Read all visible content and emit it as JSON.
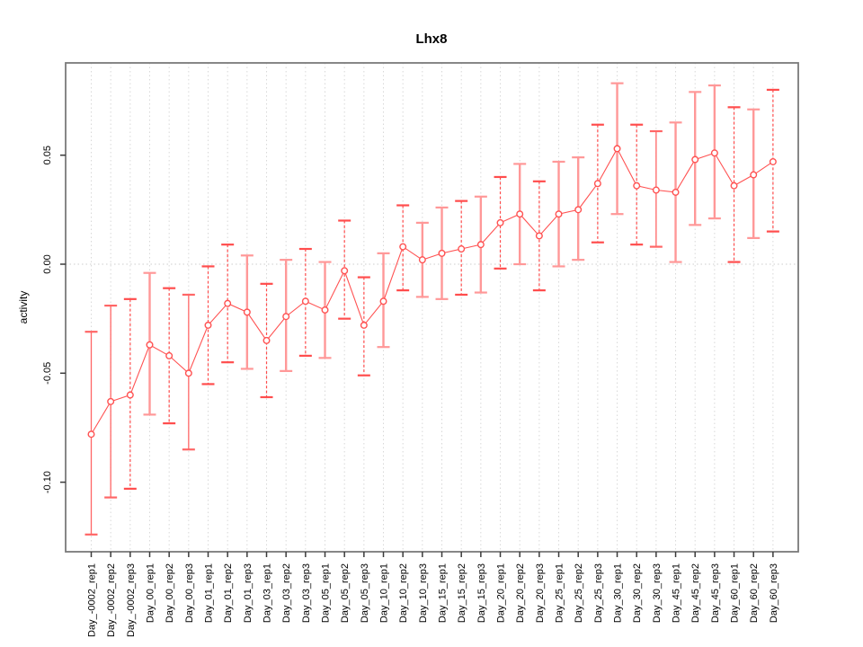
{
  "chart_data": {
    "type": "line",
    "subtype": "points-with-error-bars",
    "title": "Lhx8",
    "xlabel": "",
    "ylabel": "activity",
    "ylim": [
      -0.132,
      0.092
    ],
    "grid": "vertical dotted gridline at every x position; horizontal dotted line at y=0",
    "legend_position": "none",
    "colors": {
      "point": "#ff5252",
      "line": "#ff5252",
      "bar_solid": "#ff9898",
      "bar_solid_thin": "#ff6666",
      "bar_dashed": "#ff4d4d",
      "gridline": "#d8d8d8",
      "zero_line": "#cccccc",
      "box": "#7a7a7a",
      "tick": "#3a3a3a"
    },
    "y_ticks": [
      {
        "value": 0.05,
        "label": "0.05"
      },
      {
        "value": 0.0,
        "label": "0.00"
      },
      {
        "value": -0.05,
        "label": "-0.05"
      },
      {
        "value": -0.1,
        "label": "-0.10"
      }
    ],
    "categories": [
      "Day_-0002_rep1",
      "Day_-0002_rep2",
      "Day_-0002_rep3",
      "Day_00_rep1",
      "Day_00_rep2",
      "Day_00_rep3",
      "Day_01_rep1",
      "Day_01_rep2",
      "Day_01_rep3",
      "Day_03_rep1",
      "Day_03_rep2",
      "Day_03_rep3",
      "Day_05_rep1",
      "Day_05_rep2",
      "Day_05_rep3",
      "Day_10_rep1",
      "Day_10_rep2",
      "Day_10_rep3",
      "Day_15_rep1",
      "Day_15_rep2",
      "Day_15_rep3",
      "Day_20_rep1",
      "Day_20_rep2",
      "Day_20_rep3",
      "Day_25_rep1",
      "Day_25_rep2",
      "Day_25_rep3",
      "Day_30_rep1",
      "Day_30_rep2",
      "Day_30_rep3",
      "Day_45_rep1",
      "Day_45_rep2",
      "Day_45_rep3",
      "Day_60_rep1",
      "Day_60_rep2",
      "Day_60_rep3"
    ],
    "points": [
      {
        "label": "Day_-0002_rep1",
        "value": -0.078,
        "lower": -0.124,
        "upper": -0.031,
        "style": "solid-thin"
      },
      {
        "label": "Day_-0002_rep2",
        "value": -0.063,
        "lower": -0.107,
        "upper": -0.019,
        "style": "solid-thin"
      },
      {
        "label": "Day_-0002_rep3",
        "value": -0.06,
        "lower": -0.103,
        "upper": -0.016,
        "style": "dashed"
      },
      {
        "label": "Day_00_rep1",
        "value": -0.037,
        "lower": -0.069,
        "upper": -0.004,
        "style": "solid"
      },
      {
        "label": "Day_00_rep2",
        "value": -0.042,
        "lower": -0.073,
        "upper": -0.011,
        "style": "dashed"
      },
      {
        "label": "Day_00_rep3",
        "value": -0.05,
        "lower": -0.085,
        "upper": -0.014,
        "style": "solid-thin"
      },
      {
        "label": "Day_01_rep1",
        "value": -0.028,
        "lower": -0.055,
        "upper": -0.001,
        "style": "dashed"
      },
      {
        "label": "Day_01_rep2",
        "value": -0.018,
        "lower": -0.045,
        "upper": 0.009,
        "style": "dashed"
      },
      {
        "label": "Day_01_rep3",
        "value": -0.022,
        "lower": -0.048,
        "upper": 0.004,
        "style": "solid"
      },
      {
        "label": "Day_03_rep1",
        "value": -0.035,
        "lower": -0.061,
        "upper": -0.009,
        "style": "dashed"
      },
      {
        "label": "Day_03_rep2",
        "value": -0.024,
        "lower": -0.049,
        "upper": 0.002,
        "style": "solid"
      },
      {
        "label": "Day_03_rep3",
        "value": -0.017,
        "lower": -0.042,
        "upper": 0.007,
        "style": "dashed"
      },
      {
        "label": "Day_05_rep1",
        "value": -0.021,
        "lower": -0.043,
        "upper": 0.001,
        "style": "solid"
      },
      {
        "label": "Day_05_rep2",
        "value": -0.003,
        "lower": -0.025,
        "upper": 0.02,
        "style": "dashed"
      },
      {
        "label": "Day_05_rep3",
        "value": -0.028,
        "lower": -0.051,
        "upper": -0.006,
        "style": "dashed"
      },
      {
        "label": "Day_10_rep1",
        "value": -0.017,
        "lower": -0.038,
        "upper": 0.005,
        "style": "solid"
      },
      {
        "label": "Day_10_rep2",
        "value": 0.008,
        "lower": -0.012,
        "upper": 0.027,
        "style": "dashed"
      },
      {
        "label": "Day_10_rep3",
        "value": 0.002,
        "lower": -0.015,
        "upper": 0.019,
        "style": "solid"
      },
      {
        "label": "Day_15_rep1",
        "value": 0.005,
        "lower": -0.016,
        "upper": 0.026,
        "style": "solid"
      },
      {
        "label": "Day_15_rep2",
        "value": 0.007,
        "lower": -0.014,
        "upper": 0.029,
        "style": "dashed"
      },
      {
        "label": "Day_15_rep3",
        "value": 0.009,
        "lower": -0.013,
        "upper": 0.031,
        "style": "solid"
      },
      {
        "label": "Day_20_rep1",
        "value": 0.019,
        "lower": -0.002,
        "upper": 0.04,
        "style": "dashed"
      },
      {
        "label": "Day_20_rep2",
        "value": 0.023,
        "lower": 0.0,
        "upper": 0.046,
        "style": "solid"
      },
      {
        "label": "Day_20_rep3",
        "value": 0.013,
        "lower": -0.012,
        "upper": 0.038,
        "style": "dashed"
      },
      {
        "label": "Day_25_rep1",
        "value": 0.023,
        "lower": -0.001,
        "upper": 0.047,
        "style": "solid"
      },
      {
        "label": "Day_25_rep2",
        "value": 0.025,
        "lower": 0.002,
        "upper": 0.049,
        "style": "solid"
      },
      {
        "label": "Day_25_rep3",
        "value": 0.037,
        "lower": 0.01,
        "upper": 0.064,
        "style": "dashed"
      },
      {
        "label": "Day_30_rep1",
        "value": 0.053,
        "lower": 0.023,
        "upper": 0.083,
        "style": "solid"
      },
      {
        "label": "Day_30_rep2",
        "value": 0.036,
        "lower": 0.009,
        "upper": 0.064,
        "style": "dashed"
      },
      {
        "label": "Day_30_rep3",
        "value": 0.034,
        "lower": 0.008,
        "upper": 0.061,
        "style": "solid-thin"
      },
      {
        "label": "Day_45_rep1",
        "value": 0.033,
        "lower": 0.001,
        "upper": 0.065,
        "style": "solid"
      },
      {
        "label": "Day_45_rep2",
        "value": 0.048,
        "lower": 0.018,
        "upper": 0.079,
        "style": "solid"
      },
      {
        "label": "Day_45_rep3",
        "value": 0.051,
        "lower": 0.021,
        "upper": 0.082,
        "style": "solid"
      },
      {
        "label": "Day_60_rep1",
        "value": 0.036,
        "lower": 0.001,
        "upper": 0.072,
        "style": "dashed"
      },
      {
        "label": "Day_60_rep2",
        "value": 0.041,
        "lower": 0.012,
        "upper": 0.071,
        "style": "solid"
      },
      {
        "label": "Day_60_rep3",
        "value": 0.047,
        "lower": 0.015,
        "upper": 0.08,
        "style": "dashed"
      }
    ]
  }
}
